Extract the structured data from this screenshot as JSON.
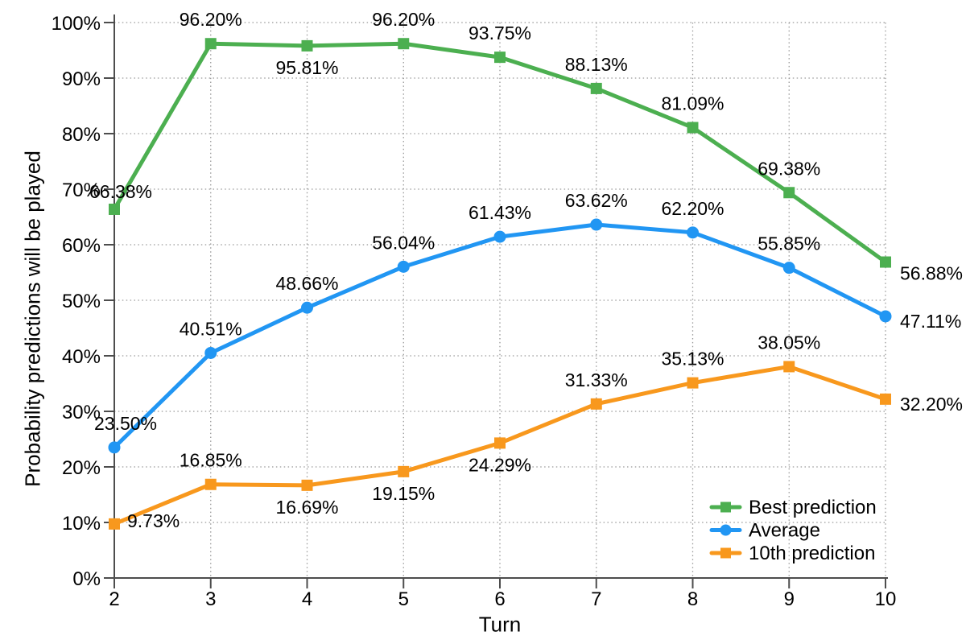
{
  "chart_data": {
    "type": "line",
    "title": "",
    "xlabel": "Turn",
    "ylabel": "Probability predictions will be played",
    "x": [
      2,
      3,
      4,
      5,
      6,
      7,
      8,
      9,
      10
    ],
    "x_tick_labels": [
      "2",
      "3",
      "4",
      "5",
      "6",
      "7",
      "8",
      "9",
      "10"
    ],
    "y_tick_values": [
      0,
      10,
      20,
      30,
      40,
      50,
      60,
      70,
      80,
      90,
      100
    ],
    "y_tick_labels": [
      "0%",
      "10%",
      "20%",
      "30%",
      "40%",
      "50%",
      "60%",
      "70%",
      "80%",
      "90%",
      "100%"
    ],
    "xlim": [
      2,
      10
    ],
    "ylim": [
      0,
      100
    ],
    "grid": true,
    "grid_style": "dotted",
    "legend_position": "bottom-right",
    "colors": {
      "axis": "#4d4d4d",
      "grid": "#999999",
      "text": "#000000"
    },
    "series": [
      {
        "name": "Best prediction",
        "color": "#4CAF50",
        "marker": "square",
        "values": [
          66.38,
          96.2,
          95.81,
          96.2,
          93.75,
          88.13,
          81.09,
          69.38,
          56.88
        ],
        "point_labels": [
          "66.38%",
          "96.20%",
          "95.81%",
          "96.20%",
          "93.75%",
          "88.13%",
          "81.09%",
          "69.38%",
          "56.88%"
        ],
        "label_placements": [
          "above-near",
          "above",
          "below",
          "above",
          "above",
          "above",
          "above",
          "above",
          "right-low"
        ]
      },
      {
        "name": "Average",
        "color": "#2196F3",
        "marker": "circle",
        "values": [
          23.5,
          40.51,
          48.66,
          56.04,
          61.43,
          63.62,
          62.2,
          55.85,
          47.11
        ],
        "point_labels": [
          "23.50%",
          "40.51%",
          "48.66%",
          "56.04%",
          "61.43%",
          "63.62%",
          "62.20%",
          "55.85%",
          "47.11%"
        ],
        "label_placements": [
          "above-right",
          "above",
          "above",
          "above",
          "above",
          "above",
          "above",
          "above",
          "right"
        ]
      },
      {
        "name": "10th prediction",
        "color": "#F8981D",
        "marker": "square",
        "values": [
          9.73,
          16.85,
          16.69,
          19.15,
          24.29,
          31.33,
          35.13,
          38.05,
          32.2
        ],
        "point_labels": [
          "9.73%",
          "16.85%",
          "16.69%",
          "19.15%",
          "24.29%",
          "31.33%",
          "35.13%",
          "38.05%",
          "32.20%"
        ],
        "label_placements": [
          "right-mid",
          "above",
          "below",
          "below",
          "below",
          "above",
          "above",
          "above",
          "right"
        ]
      }
    ]
  }
}
